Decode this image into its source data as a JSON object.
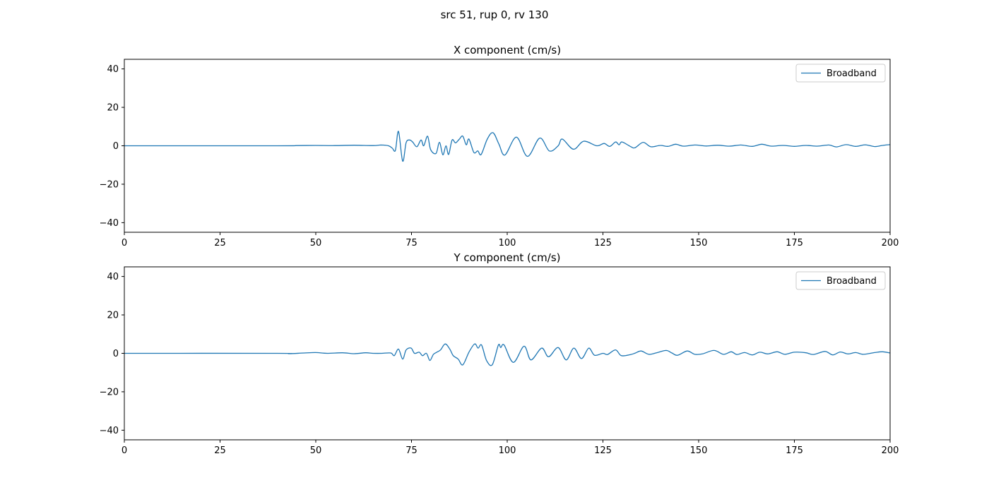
{
  "chart_data": {
    "type": "line",
    "title": "src 51, rup 0, rv 130",
    "color": "#1f77b4",
    "panels": [
      {
        "title": "X component (cm/s)",
        "xlim": [
          0,
          200
        ],
        "ylim": [
          -45,
          45
        ],
        "xticks": [
          0,
          25,
          50,
          75,
          100,
          125,
          150,
          175,
          200
        ],
        "yticks": [
          -40,
          -20,
          0,
          20,
          40
        ],
        "legend": "top-right",
        "series": [
          {
            "name": "Broadband",
            "points": [
              [
                0,
                0
              ],
              [
                40,
                0
              ],
              [
                45,
                0.1
              ],
              [
                50,
                0.2
              ],
              [
                55,
                0.1
              ],
              [
                60,
                0.3
              ],
              [
                65,
                0.1
              ],
              [
                67,
                0.4
              ],
              [
                69,
                0
              ],
              [
                70,
                -1.3
              ],
              [
                70.8,
                -2.4
              ],
              [
                71.6,
                7.5
              ],
              [
                72.7,
                -8
              ],
              [
                73.6,
                1.6
              ],
              [
                74.5,
                3
              ],
              [
                75.3,
                2
              ],
              [
                76.4,
                -0.5
              ],
              [
                77.5,
                3
              ],
              [
                78.2,
                0
              ],
              [
                79.2,
                5
              ],
              [
                80,
                -2
              ],
              [
                81.4,
                -4
              ],
              [
                82.3,
                1.8
              ],
              [
                83.2,
                -4.7
              ],
              [
                84,
                0
              ],
              [
                84.7,
                -4.5
              ],
              [
                85.6,
                3
              ],
              [
                86.5,
                1.5
              ],
              [
                87.5,
                3.5
              ],
              [
                88.4,
                5
              ],
              [
                89.3,
                0.5
              ],
              [
                90,
                3.5
              ],
              [
                91.3,
                -3.5
              ],
              [
                92.3,
                -2.7
              ],
              [
                93.2,
                -4.5
              ],
              [
                94.8,
                3.5
              ],
              [
                96.3,
                6.8
              ],
              [
                97.8,
                1
              ],
              [
                99.4,
                -4.8
              ],
              [
                102.4,
                4.5
              ],
              [
                105.3,
                -5.5
              ],
              [
                108.5,
                4
              ],
              [
                111,
                -2.7
              ],
              [
                113.3,
                0
              ],
              [
                114.4,
                3.5
              ],
              [
                117.3,
                -1.8
              ],
              [
                120,
                2.4
              ],
              [
                123.4,
                0
              ],
              [
                125.3,
                1.2
              ],
              [
                126.8,
                -0.3
              ],
              [
                128.3,
                2
              ],
              [
                129.2,
                0.5
              ],
              [
                130,
                2
              ],
              [
                132.3,
                -0.5
              ],
              [
                133.4,
                -1
              ],
              [
                135.5,
                1.8
              ],
              [
                137.5,
                -0.5
              ],
              [
                140,
                0.2
              ],
              [
                142,
                -0.3
              ],
              [
                144,
                0.8
              ],
              [
                146,
                -0.2
              ],
              [
                149,
                0.4
              ],
              [
                152,
                -0.1
              ],
              [
                155,
                0.3
              ],
              [
                158,
                -0.2
              ],
              [
                161,
                0.4
              ],
              [
                164,
                -0.3
              ],
              [
                166.5,
                0.8
              ],
              [
                169,
                -0.2
              ],
              [
                172,
                0.2
              ],
              [
                175,
                -0.3
              ],
              [
                178,
                0.2
              ],
              [
                181,
                -0.2
              ],
              [
                184,
                0.4
              ],
              [
                186,
                -0.6
              ],
              [
                188.5,
                0.6
              ],
              [
                191,
                -0.3
              ],
              [
                193.5,
                0.5
              ],
              [
                196,
                -0.4
              ],
              [
                198,
                0.2
              ],
              [
                200,
                0.6
              ]
            ]
          }
        ]
      },
      {
        "title": "Y component (cm/s)",
        "xlim": [
          0,
          200
        ],
        "ylim": [
          -45,
          45
        ],
        "xticks": [
          0,
          25,
          50,
          75,
          100,
          125,
          150,
          175,
          200
        ],
        "yticks": [
          -40,
          -20,
          0,
          20,
          40
        ],
        "legend": "top-right",
        "series": [
          {
            "name": "Broadband",
            "points": [
              [
                0,
                0
              ],
              [
                40,
                0
              ],
              [
                43,
                -0.2
              ],
              [
                47,
                0.2
              ],
              [
                50,
                0.4
              ],
              [
                53,
                0
              ],
              [
                57,
                0.3
              ],
              [
                60,
                -0.2
              ],
              [
                63,
                0.3
              ],
              [
                65,
                0
              ],
              [
                67.2,
                0
              ],
              [
                69.6,
                0.2
              ],
              [
                70.5,
                -1.2
              ],
              [
                71.6,
                2.2
              ],
              [
                72.7,
                -3
              ],
              [
                73.6,
                1.8
              ],
              [
                74.9,
                2.7
              ],
              [
                75.8,
                0
              ],
              [
                77,
                0.6
              ],
              [
                77.9,
                -1.2
              ],
              [
                78.9,
                0
              ],
              [
                79.8,
                -3.7
              ],
              [
                80.7,
                -0.6
              ],
              [
                81.6,
                0.6
              ],
              [
                82.6,
                1.8
              ],
              [
                83.8,
                4.9
              ],
              [
                85,
                2.2
              ],
              [
                85.9,
                -1.2
              ],
              [
                87.2,
                -3
              ],
              [
                88.4,
                -6
              ],
              [
                90,
                0.6
              ],
              [
                91.5,
                4.9
              ],
              [
                92.4,
                2.7
              ],
              [
                93.3,
                4.3
              ],
              [
                94.6,
                -3.7
              ],
              [
                96.1,
                -5.9
              ],
              [
                97.7,
                4.3
              ],
              [
                98.3,
                3
              ],
              [
                99.2,
                4.3
              ],
              [
                101.6,
                -4.7
              ],
              [
                104.4,
                3.7
              ],
              [
                106.2,
                -3.4
              ],
              [
                109,
                2.7
              ],
              [
                110.8,
                -1.8
              ],
              [
                113.3,
                3
              ],
              [
                115.4,
                -3.4
              ],
              [
                117.4,
                2.7
              ],
              [
                119.4,
                -2.7
              ],
              [
                121.3,
                2.7
              ],
              [
                122.8,
                -1
              ],
              [
                125,
                0
              ],
              [
                126.2,
                -0.6
              ],
              [
                128.3,
                1.8
              ],
              [
                129.8,
                -1.2
              ],
              [
                132.3,
                -0.6
              ],
              [
                133.5,
                0.2
              ],
              [
                135,
                1.2
              ],
              [
                137,
                -0.5
              ],
              [
                139,
                0.3
              ],
              [
                141.5,
                1.5
              ],
              [
                143,
                0.2
              ],
              [
                144.5,
                -1
              ],
              [
                147,
                1.2
              ],
              [
                149,
                -0.5
              ],
              [
                151,
                -0.3
              ],
              [
                154,
                1.5
              ],
              [
                156.5,
                -0.5
              ],
              [
                158.5,
                0.8
              ],
              [
                160,
                -0.6
              ],
              [
                162,
                0.4
              ],
              [
                164,
                -0.8
              ],
              [
                166,
                0.6
              ],
              [
                168,
                -0.3
              ],
              [
                170.5,
                0.8
              ],
              [
                172.5,
                -0.5
              ],
              [
                175,
                0.6
              ],
              [
                178,
                0.3
              ],
              [
                180,
                -0.6
              ],
              [
                183,
                1
              ],
              [
                185,
                -0.8
              ],
              [
                187,
                0.7
              ],
              [
                189,
                -0.3
              ],
              [
                191,
                0.4
              ],
              [
                193,
                -0.5
              ],
              [
                196,
                0.4
              ],
              [
                198,
                0.8
              ],
              [
                200,
                0.2
              ]
            ]
          }
        ]
      }
    ]
  }
}
